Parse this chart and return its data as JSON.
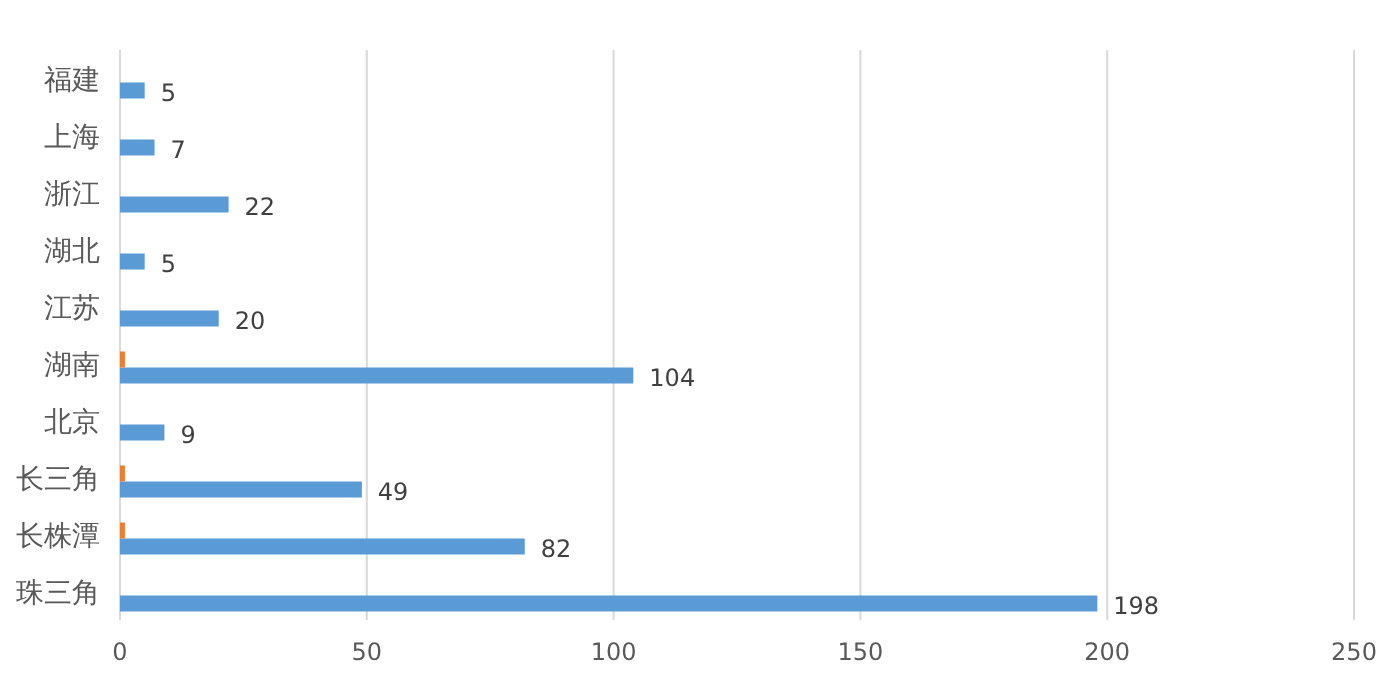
{
  "chart_data": {
    "type": "bar",
    "orientation": "horizontal",
    "categories": [
      "福建",
      "上海",
      "浙江",
      "湖北",
      "江苏",
      "湖南",
      "北京",
      "长三角",
      "长株潭",
      "珠三角"
    ],
    "series": [
      {
        "color": "#5b9bd5",
        "values": [
          5,
          7,
          22,
          5,
          20,
          104,
          9,
          49,
          82,
          198
        ],
        "value_labels": [
          "5",
          "7",
          "22",
          "5",
          "20",
          "104",
          "9",
          "49",
          "82",
          "198"
        ]
      },
      {
        "color": "#ed7d31",
        "values": [
          null,
          null,
          null,
          null,
          null,
          1,
          null,
          1,
          1,
          null
        ]
      }
    ],
    "xlim": [
      0,
      250
    ],
    "xticks": [
      0,
      50,
      100,
      150,
      200,
      250
    ],
    "grid": "x"
  }
}
